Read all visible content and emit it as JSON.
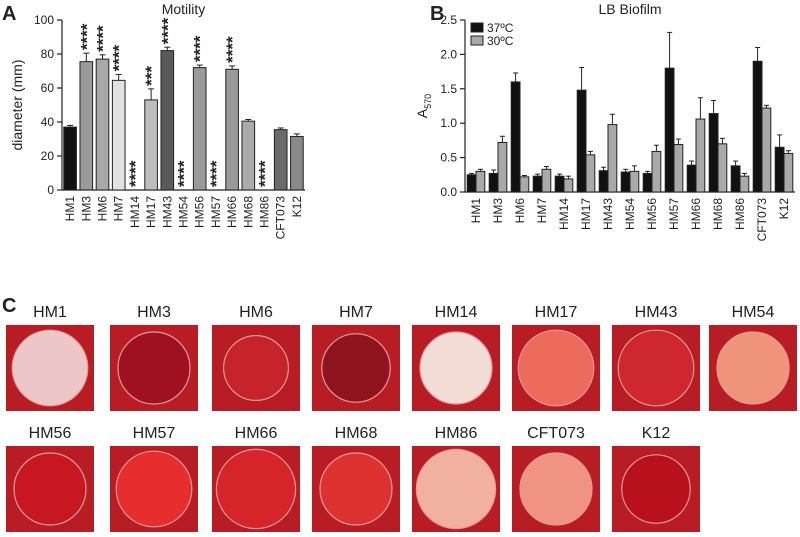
{
  "panel_labels": [
    "A",
    "B",
    "C"
  ],
  "chart_data": [
    {
      "type": "bar",
      "title": "Motility",
      "y_label": "diameter (mm)",
      "categories": [
        "HM1",
        "HM3",
        "HM6",
        "HM7",
        "HM14",
        "HM17",
        "HM43",
        "HM54",
        "HM56",
        "HM57",
        "HM66",
        "HM68",
        "HM86",
        "CFT073",
        "K12"
      ],
      "values": [
        37,
        75.5,
        77,
        64.5,
        0,
        53,
        82,
        0,
        72,
        0,
        71,
        40.5,
        0,
        35.5,
        31.5
      ],
      "errors": [
        1,
        5,
        2.5,
        3.5,
        0,
        6.5,
        2,
        0,
        1.5,
        0,
        2,
        1,
        0,
        1,
        1.5
      ],
      "colors": [
        "#111111",
        "#9a9a9a",
        "#a8a8a8",
        "#e2e2e2",
        "#a8a8a8",
        "#bdbdbd",
        "#5a5a5a",
        "#a8a8a8",
        "#9a9a9a",
        "#a8a8a8",
        "#9a9a9a",
        "#ababab",
        "#a8a8a8",
        "#6a6a6a",
        "#8a8a8a"
      ],
      "annotations": [
        null,
        "****",
        "****",
        "****",
        "****",
        "***",
        "****",
        "****",
        "****",
        "****",
        "****",
        null,
        "****",
        null,
        null
      ],
      "ylim": [
        0,
        100
      ],
      "yticks": [
        0,
        20,
        40,
        60,
        80,
        100
      ],
      "grid": false
    },
    {
      "type": "grouped_bar",
      "title": "LB Biofilm",
      "y_label": "A",
      "y_label_sub": "570",
      "categories": [
        "HM1",
        "HM3",
        "HM6",
        "HM7",
        "HM14",
        "HM17",
        "HM43",
        "HM54",
        "HM56",
        "HM57",
        "HM66",
        "HM68",
        "HM86",
        "CFT073",
        "K12"
      ],
      "series": [
        {
          "name": "37ºC",
          "color": "#111111",
          "values": [
            0.25,
            0.27,
            1.6,
            0.23,
            0.23,
            1.48,
            0.31,
            0.29,
            0.27,
            1.8,
            0.39,
            1.14,
            0.38,
            1.9,
            0.65
          ],
          "errors": [
            0.02,
            0.05,
            0.13,
            0.03,
            0.03,
            0.33,
            0.05,
            0.04,
            0.03,
            0.52,
            0.06,
            0.19,
            0.07,
            0.2,
            0.18
          ]
        },
        {
          "name": "30ºC",
          "color": "#a9a9a9",
          "values": [
            0.3,
            0.72,
            0.22,
            0.33,
            0.19,
            0.54,
            0.98,
            0.3,
            0.59,
            0.69,
            1.06,
            0.7,
            0.23,
            1.22,
            0.56
          ],
          "errors": [
            0.03,
            0.09,
            0.02,
            0.04,
            0.04,
            0.05,
            0.15,
            0.08,
            0.09,
            0.08,
            0.31,
            0.08,
            0.04,
            0.04,
            0.04
          ]
        }
      ],
      "ylim": [
        0,
        2.5
      ],
      "yticks": [
        {
          "value": 0,
          "label": "0.0"
        },
        0.5,
        {
          "value": 1,
          "label": "1.0"
        },
        1.5,
        {
          "value": 2,
          "label": "2.0"
        },
        2.5
      ],
      "legend": "upper left",
      "grid": false
    }
  ],
  "plates": [
    "HM1",
    "HM3",
    "HM6",
    "HM7",
    "HM14",
    "HM17",
    "HM43",
    "HM54",
    "HM56",
    "HM57",
    "HM66",
    "HM68",
    "HM86",
    "CFT073",
    "K12"
  ]
}
